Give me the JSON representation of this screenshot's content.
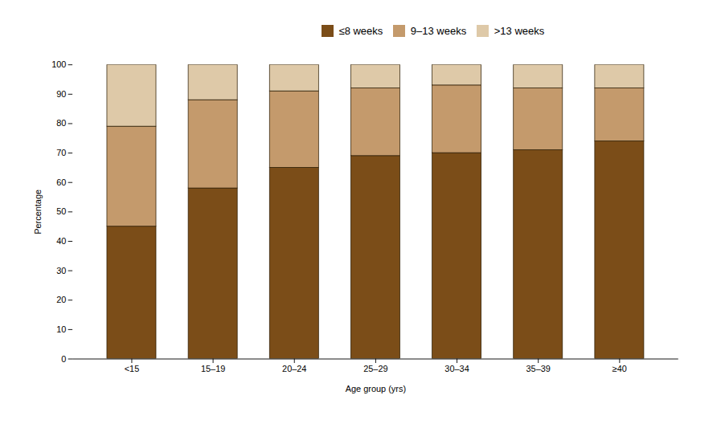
{
  "chart_data": {
    "type": "bar",
    "stacked": true,
    "categories": [
      "<15",
      "15–19",
      "20–24",
      "25–29",
      "30–34",
      "35–39",
      "≥40"
    ],
    "series": [
      {
        "name": "≤8 weeks",
        "color": "#7B4D18",
        "values": [
          45,
          58,
          65,
          69,
          70,
          71,
          74
        ]
      },
      {
        "name": "9–13 weeks",
        "color": "#C49A6C",
        "values": [
          34,
          30,
          26,
          23,
          23,
          21,
          18
        ]
      },
      {
        "name": ">13 weeks",
        "color": "#DEC9A8",
        "values": [
          21,
          12,
          9,
          8,
          7,
          8,
          8
        ]
      }
    ],
    "xlabel": "Age group (yrs)",
    "ylabel": "Percentage",
    "ylim": [
      0,
      100
    ],
    "yticks": [
      0,
      10,
      20,
      30,
      40,
      50,
      60,
      70,
      80,
      90,
      100
    ],
    "grid": false,
    "legend": "top"
  }
}
